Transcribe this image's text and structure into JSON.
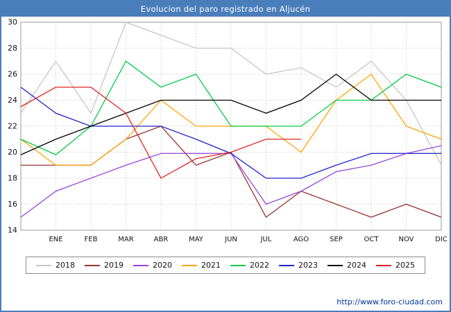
{
  "header": {
    "title": "Evolucion del paro registrado en Aljucén"
  },
  "footer": {
    "link": "http://www.foro-ciudad.com"
  },
  "colors": {
    "frame": "#4a7ebb",
    "titlebar_bg": "#4a7ebb",
    "titlebar_text": "#ffffff",
    "grid": "#cccccc",
    "plot_border": "#999999",
    "axis_text": "#111111"
  },
  "chart_data": {
    "type": "line",
    "title": "Evolucion del paro registrado en Aljucén",
    "xlabel": "",
    "ylabel": "",
    "x_labels": [
      "ENE",
      "FEB",
      "MAR",
      "ABR",
      "MAY",
      "JUN",
      "JUL",
      "AGO",
      "SEP",
      "OCT",
      "NOV",
      "DIC"
    ],
    "ylim": [
      14,
      30
    ],
    "y_ticks": [
      14,
      16,
      18,
      20,
      22,
      24,
      26,
      28,
      30
    ],
    "grid": true,
    "grid_color": "#cccccc",
    "legend_position": "bottom",
    "first_point_is_axis_start": true,
    "series": [
      {
        "name": "2018",
        "color": "#c6c6c6",
        "values": [
          23,
          27,
          23,
          30,
          29,
          28,
          28,
          26,
          26.5,
          25,
          27,
          24,
          19
        ]
      },
      {
        "name": "2019",
        "color": "#993333",
        "values": [
          19,
          19,
          19,
          21,
          22,
          19,
          20,
          15,
          17,
          16,
          15,
          16,
          15
        ]
      },
      {
        "name": "2020",
        "color": "#9944dd",
        "values": [
          15,
          17,
          18,
          19,
          19.9,
          19.9,
          19.9,
          16,
          17,
          18.5,
          19,
          19.9,
          20.5
        ]
      },
      {
        "name": "2021",
        "color": "#ffa500",
        "values": [
          21,
          19,
          19,
          21,
          24,
          22,
          22,
          22,
          20,
          24,
          26,
          22,
          21
        ]
      },
      {
        "name": "2022",
        "color": "#00cc44",
        "values": [
          21,
          19.8,
          22,
          27,
          25,
          26,
          22,
          22,
          22,
          24,
          24,
          26,
          25
        ]
      },
      {
        "name": "2023",
        "color": "#2222cc",
        "values": [
          25,
          23,
          22,
          22,
          22,
          21,
          19.9,
          18,
          18,
          19,
          19.9,
          19.9,
          19.9
        ]
      },
      {
        "name": "2024",
        "color": "#000000",
        "values": [
          19.8,
          21,
          22,
          23,
          24,
          24,
          24,
          23,
          24,
          26,
          24,
          24,
          24
        ]
      },
      {
        "name": "2025",
        "color": "#dd2222",
        "values": [
          23.5,
          25,
          25,
          23,
          18,
          19.5,
          20,
          21,
          21
        ]
      }
    ]
  }
}
